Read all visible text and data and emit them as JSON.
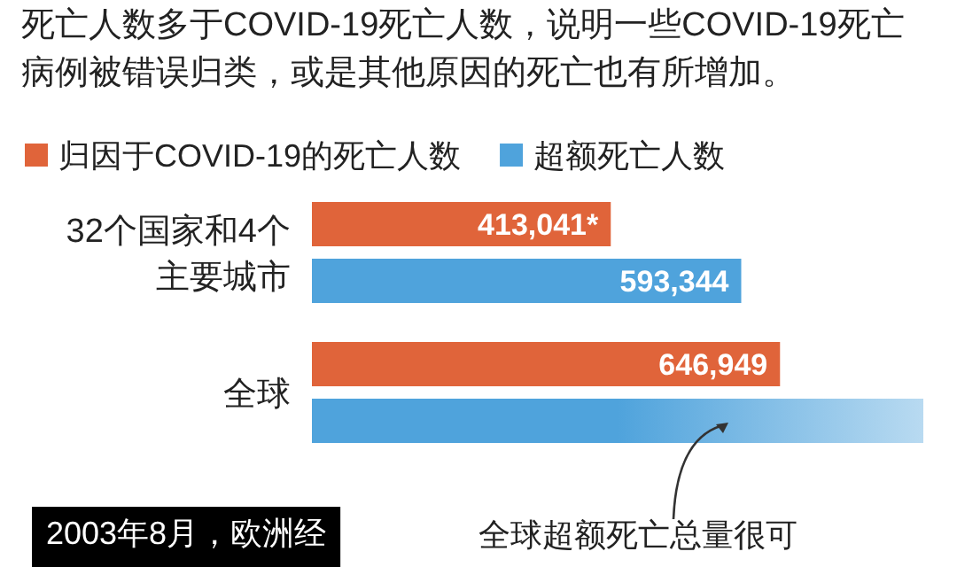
{
  "chart_data": {
    "type": "bar",
    "orientation": "horizontal",
    "subtitle": "死亡人数多于COVID-19死亡人数，说明一些COVID-19死亡病例被错误归类，或是其他原因的死亡也有所增加。",
    "categories": [
      "32个国家和4个主要城市",
      "全球"
    ],
    "series": [
      {
        "name": "归因于COVID-19的死亡人数",
        "color": "#e0643a",
        "values": [
          413041,
          646949
        ],
        "value_labels": [
          "413,041*",
          "646,949"
        ]
      },
      {
        "name": "超额死亡人数",
        "color": "#4fa3dc",
        "values": [
          593344,
          845000
        ],
        "value_labels": [
          "593,344",
          null
        ]
      }
    ],
    "legend": "top left",
    "annotations": [
      "2003年8月，欧洲经",
      "全球超额死亡总量很可"
    ]
  }
}
